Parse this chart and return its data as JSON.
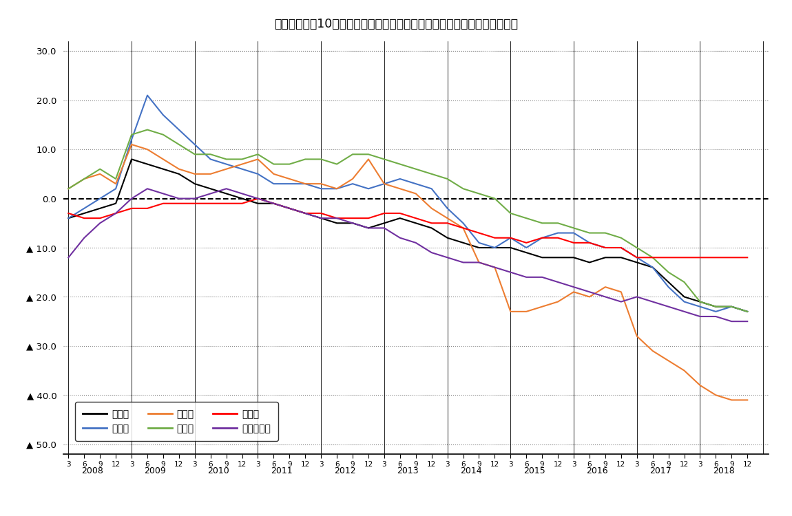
{
  "title": "図－２　過去10年間の従業員数過不足ＤＩの推移（「過剰」－「不足」）",
  "ylim": [
    -52,
    32
  ],
  "yticks": [
    30,
    20,
    10,
    0,
    -10,
    -20,
    -30,
    -40,
    -50
  ],
  "colors": {
    "全産業": "#000000",
    "製造業": "#4472C4",
    "建設業": "#ED7D31",
    "卸売業": "#70AD47",
    "小売業": "#FF0000",
    "サービス業": "#7030A0"
  },
  "series": {
    "全産業": [
      -4,
      -3,
      -2,
      -1,
      8,
      7,
      6,
      5,
      3,
      2,
      1,
      0,
      -1,
      -1,
      -2,
      -3,
      -4,
      -5,
      -5,
      -6,
      -5,
      -4,
      -5,
      -6,
      -8,
      -9,
      -10,
      -10,
      -10,
      -11,
      -12,
      -12,
      -12,
      -13,
      -12,
      -12,
      -13,
      -14,
      -17,
      -20,
      -21,
      -22,
      -22,
      -23
    ],
    "製造業": [
      -4,
      -2,
      0,
      2,
      12,
      21,
      17,
      14,
      11,
      8,
      7,
      6,
      5,
      3,
      3,
      3,
      2,
      2,
      3,
      2,
      3,
      4,
      3,
      2,
      -2,
      -5,
      -9,
      -10,
      -8,
      -10,
      -8,
      -7,
      -7,
      -9,
      -10,
      -10,
      -12,
      -14,
      -18,
      -21,
      -22,
      -23,
      -22,
      -23
    ],
    "建設業": [
      2,
      4,
      5,
      3,
      11,
      10,
      8,
      6,
      5,
      5,
      6,
      7,
      8,
      5,
      4,
      3,
      3,
      2,
      4,
      8,
      3,
      2,
      1,
      -2,
      -4,
      -6,
      -13,
      -14,
      -23,
      -23,
      -22,
      -21,
      -19,
      -20,
      -18,
      -19,
      -28,
      -31,
      -33,
      -35,
      -38,
      -40,
      -41,
      -41
    ],
    "卸売業": [
      2,
      4,
      6,
      4,
      13,
      14,
      13,
      11,
      9,
      9,
      8,
      8,
      9,
      7,
      7,
      8,
      8,
      7,
      9,
      9,
      8,
      7,
      6,
      5,
      4,
      2,
      1,
      0,
      -3,
      -4,
      -5,
      -5,
      -6,
      -7,
      -7,
      -8,
      -10,
      -12,
      -15,
      -17,
      -21,
      -22,
      -22,
      -23
    ],
    "小売業": [
      -3,
      -4,
      -4,
      -3,
      -2,
      -2,
      -1,
      -1,
      -1,
      -1,
      -1,
      -1,
      0,
      -1,
      -2,
      -3,
      -3,
      -4,
      -4,
      -4,
      -3,
      -3,
      -4,
      -5,
      -5,
      -6,
      -7,
      -8,
      -8,
      -9,
      -8,
      -8,
      -9,
      -9,
      -10,
      -10,
      -12,
      -12,
      -12,
      -12,
      -12,
      -12,
      -12,
      -12
    ],
    "サービス業": [
      -12,
      -8,
      -5,
      -3,
      0,
      2,
      1,
      0,
      0,
      1,
      2,
      1,
      0,
      -1,
      -2,
      -3,
      -4,
      -4,
      -5,
      -6,
      -6,
      -8,
      -9,
      -11,
      -12,
      -13,
      -13,
      -14,
      -15,
      -16,
      -16,
      -17,
      -18,
      -19,
      -20,
      -21,
      -20,
      -21,
      -22,
      -23,
      -24,
      -24,
      -25,
      -25
    ]
  },
  "legend_order": [
    "全産業",
    "製造業",
    "建設業",
    "卸売業",
    "小売業",
    "サービス業"
  ]
}
